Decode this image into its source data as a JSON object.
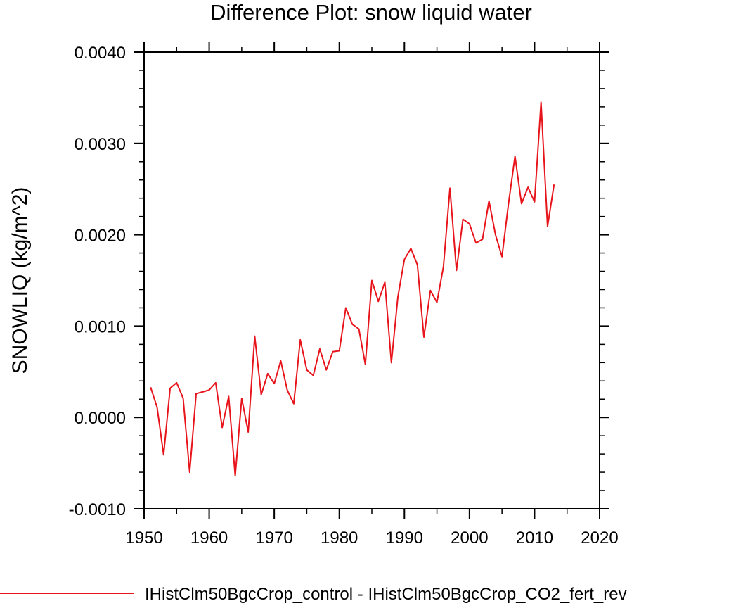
{
  "chart_data": {
    "type": "line",
    "title": "Difference Plot: snow liquid water",
    "xlabel": "",
    "ylabel": "SNOWLIQ  (kg/m^2)",
    "xlim": [
      1950,
      2020
    ],
    "ylim": [
      -0.001,
      0.004
    ],
    "x_ticks": [
      1950,
      1960,
      1970,
      1980,
      1990,
      2000,
      2010,
      2020
    ],
    "x_tick_labels": [
      "1950",
      "1960",
      "1970",
      "1980",
      "1990",
      "2000",
      "2010",
      "2020"
    ],
    "y_ticks": [
      -0.001,
      0.0,
      0.001,
      0.002,
      0.003,
      0.004
    ],
    "y_tick_labels": [
      "-0.0010",
      "0.0000",
      "0.0010",
      "0.0020",
      "0.0030",
      "0.0040"
    ],
    "grid": false,
    "legend_position": "bottom",
    "series": [
      {
        "name": "IHistClm50BgcCrop_control - IHistClm50BgcCrop_CO2_fert_rev",
        "color": "#e8141b",
        "x": [
          1951,
          1952,
          1953,
          1954,
          1955,
          1956,
          1957,
          1958,
          1959,
          1960,
          1961,
          1962,
          1963,
          1964,
          1965,
          1966,
          1967,
          1968,
          1969,
          1970,
          1971,
          1972,
          1973,
          1974,
          1975,
          1976,
          1977,
          1978,
          1979,
          1980,
          1981,
          1982,
          1983,
          1984,
          1985,
          1986,
          1987,
          1988,
          1989,
          1990,
          1991,
          1992,
          1993,
          1994,
          1995,
          1996,
          1997,
          1998,
          1999,
          2000,
          2001,
          2002,
          2003,
          2004,
          2005,
          2006,
          2007,
          2008,
          2009,
          2010,
          2011,
          2012,
          2013
        ],
        "values": [
          0.00033,
          0.00011,
          -0.00041,
          0.00032,
          0.00038,
          0.00021,
          -0.0006,
          0.00026,
          0.00028,
          0.0003,
          0.00038,
          -0.00011,
          0.00023,
          -0.00064,
          0.00021,
          -0.00016,
          0.00089,
          0.00025,
          0.00048,
          0.00037,
          0.00062,
          0.0003,
          0.00015,
          0.00085,
          0.00052,
          0.00046,
          0.00075,
          0.00052,
          0.00072,
          0.00073,
          0.0012,
          0.00102,
          0.00097,
          0.00058,
          0.0015,
          0.00127,
          0.00148,
          0.0006,
          0.00132,
          0.00173,
          0.00185,
          0.00167,
          0.00088,
          0.00139,
          0.00126,
          0.00165,
          0.00251,
          0.00161,
          0.00217,
          0.00212,
          0.00191,
          0.00195,
          0.00237,
          0.002,
          0.00176,
          0.00234,
          0.00286,
          0.00234,
          0.00252,
          0.00236,
          0.00345,
          0.00209,
          0.00255
        ]
      }
    ]
  }
}
